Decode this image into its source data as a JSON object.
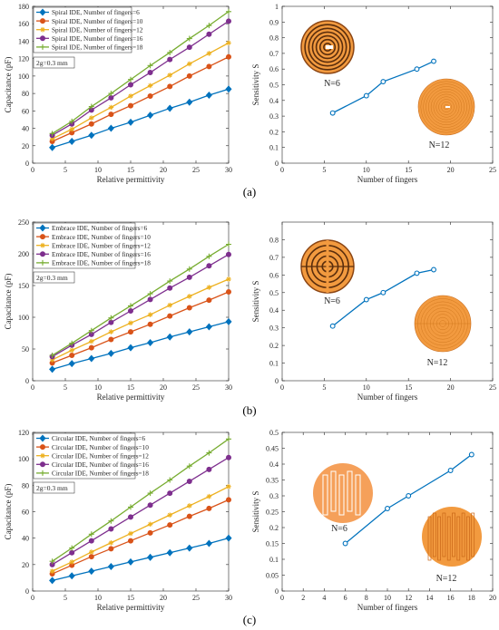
{
  "figure": {
    "panel_labels": [
      "(a)",
      "(b)",
      "(c)"
    ]
  },
  "chart_data": [
    {
      "id": "a-left",
      "type": "line",
      "xlabel": "Relative permittivity",
      "ylabel": "Capacitance (pF)",
      "xlim": [
        0,
        30
      ],
      "ylim": [
        0,
        180
      ],
      "xticks": [
        0,
        5,
        10,
        15,
        20,
        25,
        30
      ],
      "yticks": [
        0,
        20,
        40,
        60,
        80,
        100,
        120,
        140,
        160,
        180
      ],
      "legend": "top-left",
      "annotation": "2g=0.3 mm",
      "x": [
        3,
        6,
        9,
        12,
        15,
        18,
        21,
        24,
        27,
        30
      ],
      "series": [
        {
          "name": "Spiral IDE, Number of fingers=6",
          "color": "#0072BD",
          "marker": "diamond",
          "values": [
            18,
            25,
            32,
            40,
            47,
            55,
            63,
            70,
            78,
            85
          ]
        },
        {
          "name": "Spiral IDE, Number of fingers=10",
          "color": "#D95319",
          "marker": "circle",
          "values": [
            25,
            35,
            45,
            56,
            66,
            77,
            88,
            100,
            111,
            122
          ]
        },
        {
          "name": "Spiral IDE, Number of fingers=12",
          "color": "#EDB120",
          "marker": "star",
          "values": [
            28,
            39,
            52,
            64,
            77,
            89,
            101,
            114,
            126,
            138
          ]
        },
        {
          "name": "Spiral IDE, Number of fingers=16",
          "color": "#7E2F8E",
          "marker": "circle",
          "values": [
            32,
            45,
            61,
            75,
            90,
            104,
            119,
            133,
            148,
            163
          ]
        },
        {
          "name": "Spiral IDE, Number of fingers=18",
          "color": "#77AC30",
          "marker": "plus",
          "values": [
            34,
            48,
            65,
            80,
            96,
            112,
            127,
            143,
            158,
            174
          ]
        }
      ]
    },
    {
      "id": "a-right",
      "type": "line",
      "xlabel": "Number of fingers",
      "ylabel": "Sensitivity S",
      "xlim": [
        0,
        25
      ],
      "ylim": [
        0,
        1
      ],
      "xticks": [
        0,
        5,
        10,
        15,
        20,
        25
      ],
      "yticks": [
        0,
        0.1,
        0.2,
        0.3,
        0.4,
        0.5,
        0.6,
        0.7,
        0.8,
        0.9,
        1
      ],
      "series": [
        {
          "color": "#0072BD",
          "marker": "circle",
          "x": [
            6,
            10,
            12,
            16,
            18
          ],
          "values": [
            0.32,
            0.43,
            0.52,
            0.6,
            0.65
          ]
        }
      ],
      "insets": [
        {
          "label": "N=6",
          "style": "spiral6"
        },
        {
          "label": "N=12",
          "style": "spiral12"
        }
      ]
    },
    {
      "id": "b-left",
      "type": "line",
      "xlabel": "Relative permittivity",
      "ylabel": "Capacitance (pF)",
      "xlim": [
        0,
        30
      ],
      "ylim": [
        0,
        250
      ],
      "xticks": [
        0,
        5,
        10,
        15,
        20,
        25,
        30
      ],
      "yticks": [
        0,
        50,
        100,
        150,
        200,
        250
      ],
      "legend": "top-left",
      "annotation": "2g=0.3 mm",
      "x": [
        3,
        6,
        9,
        12,
        15,
        18,
        21,
        24,
        27,
        30
      ],
      "series": [
        {
          "name": "Embrace IDE, Number of fingers=6",
          "color": "#0072BD",
          "marker": "diamond",
          "values": [
            18,
            27,
            35,
            43,
            52,
            60,
            69,
            77,
            85,
            93
          ]
        },
        {
          "name": "Embrace IDE, Number of fingers=10",
          "color": "#D95319",
          "marker": "circle",
          "values": [
            28,
            40,
            52,
            65,
            77,
            89,
            102,
            115,
            127,
            140
          ]
        },
        {
          "name": "Embrace IDE, Number of fingers=12",
          "color": "#EDB120",
          "marker": "star",
          "values": [
            33,
            48,
            62,
            77,
            91,
            104,
            119,
            133,
            147,
            160
          ]
        },
        {
          "name": "Embrace IDE, Number of fingers=16",
          "color": "#7E2F8E",
          "marker": "circle",
          "values": [
            38,
            56,
            73,
            92,
            110,
            128,
            146,
            163,
            181,
            199
          ]
        },
        {
          "name": "Embrace IDE, Number of fingers=18",
          "color": "#77AC30",
          "marker": "plus",
          "values": [
            40,
            59,
            79,
            99,
            118,
            137,
            157,
            176,
            196,
            215
          ]
        }
      ]
    },
    {
      "id": "b-right",
      "type": "line",
      "xlabel": "Number of fingers",
      "ylabel": "Sensitivity S",
      "xlim": [
        0,
        25
      ],
      "ylim": [
        0,
        0.9
      ],
      "xticks": [
        0,
        5,
        10,
        15,
        20,
        25
      ],
      "yticks": [
        0,
        0.1,
        0.2,
        0.3,
        0.4,
        0.5,
        0.6,
        0.7,
        0.8
      ],
      "series": [
        {
          "color": "#0072BD",
          "marker": "circle",
          "x": [
            6,
            10,
            12,
            16,
            18
          ],
          "values": [
            0.31,
            0.46,
            0.5,
            0.61,
            0.63
          ]
        }
      ],
      "insets": [
        {
          "label": "N=6",
          "style": "embrace6"
        },
        {
          "label": "N=12",
          "style": "embrace12"
        }
      ]
    },
    {
      "id": "c-left",
      "type": "line",
      "xlabel": "Relative permittivity",
      "ylabel": "Capacitance (pF)",
      "xlim": [
        0,
        30
      ],
      "ylim": [
        0,
        120
      ],
      "xticks": [
        0,
        5,
        10,
        15,
        20,
        25,
        30
      ],
      "yticks": [
        0,
        20,
        40,
        60,
        80,
        100,
        120
      ],
      "legend": "top-left",
      "annotation": "2g=0.3 mm",
      "x": [
        3,
        6,
        9,
        12,
        15,
        18,
        21,
        24,
        27,
        30
      ],
      "series": [
        {
          "name": "Circular IDE, Number of fingers=6",
          "color": "#0072BD",
          "marker": "diamond",
          "values": [
            8,
            11.5,
            15,
            18.5,
            22,
            25.5,
            29,
            32.5,
            36,
            40
          ]
        },
        {
          "name": "Circular IDE, Number of fingers=10",
          "color": "#D95319",
          "marker": "circle",
          "values": [
            13,
            19.5,
            26,
            32,
            38,
            44,
            50,
            56.5,
            62.5,
            69
          ]
        },
        {
          "name": "Circular IDE, Number of fingers=12",
          "color": "#EDB120",
          "marker": "star",
          "values": [
            15,
            22,
            29.5,
            36.5,
            43.5,
            50.5,
            57.5,
            64.5,
            71.5,
            79
          ]
        },
        {
          "name": "Circular IDE, Number of fingers=16",
          "color": "#7E2F8E",
          "marker": "circle",
          "values": [
            20,
            29,
            38,
            47,
            56,
            65,
            74,
            83,
            92,
            101
          ]
        },
        {
          "name": "Circular IDE, Number of fingers=18",
          "color": "#77AC30",
          "marker": "plus",
          "values": [
            22.5,
            32.5,
            43,
            53,
            63.5,
            74,
            84,
            94.5,
            104.5,
            115
          ]
        }
      ]
    },
    {
      "id": "c-right",
      "type": "line",
      "xlabel": "Number of fingers",
      "ylabel": "Sensitivity S",
      "xlim": [
        0,
        20
      ],
      "ylim": [
        0,
        0.5
      ],
      "xticks": [
        0,
        2,
        4,
        6,
        8,
        10,
        12,
        14,
        16,
        18,
        20
      ],
      "yticks": [
        0,
        0.05,
        0.1,
        0.15,
        0.2,
        0.25,
        0.3,
        0.35,
        0.4,
        0.45,
        0.5
      ],
      "series": [
        {
          "color": "#0072BD",
          "marker": "circle",
          "x": [
            6,
            10,
            12,
            16,
            18
          ],
          "values": [
            0.15,
            0.26,
            0.3,
            0.38,
            0.43
          ]
        }
      ],
      "insets": [
        {
          "label": "N=6",
          "style": "circ6"
        },
        {
          "label": "N=12",
          "style": "circ12"
        }
      ]
    }
  ]
}
